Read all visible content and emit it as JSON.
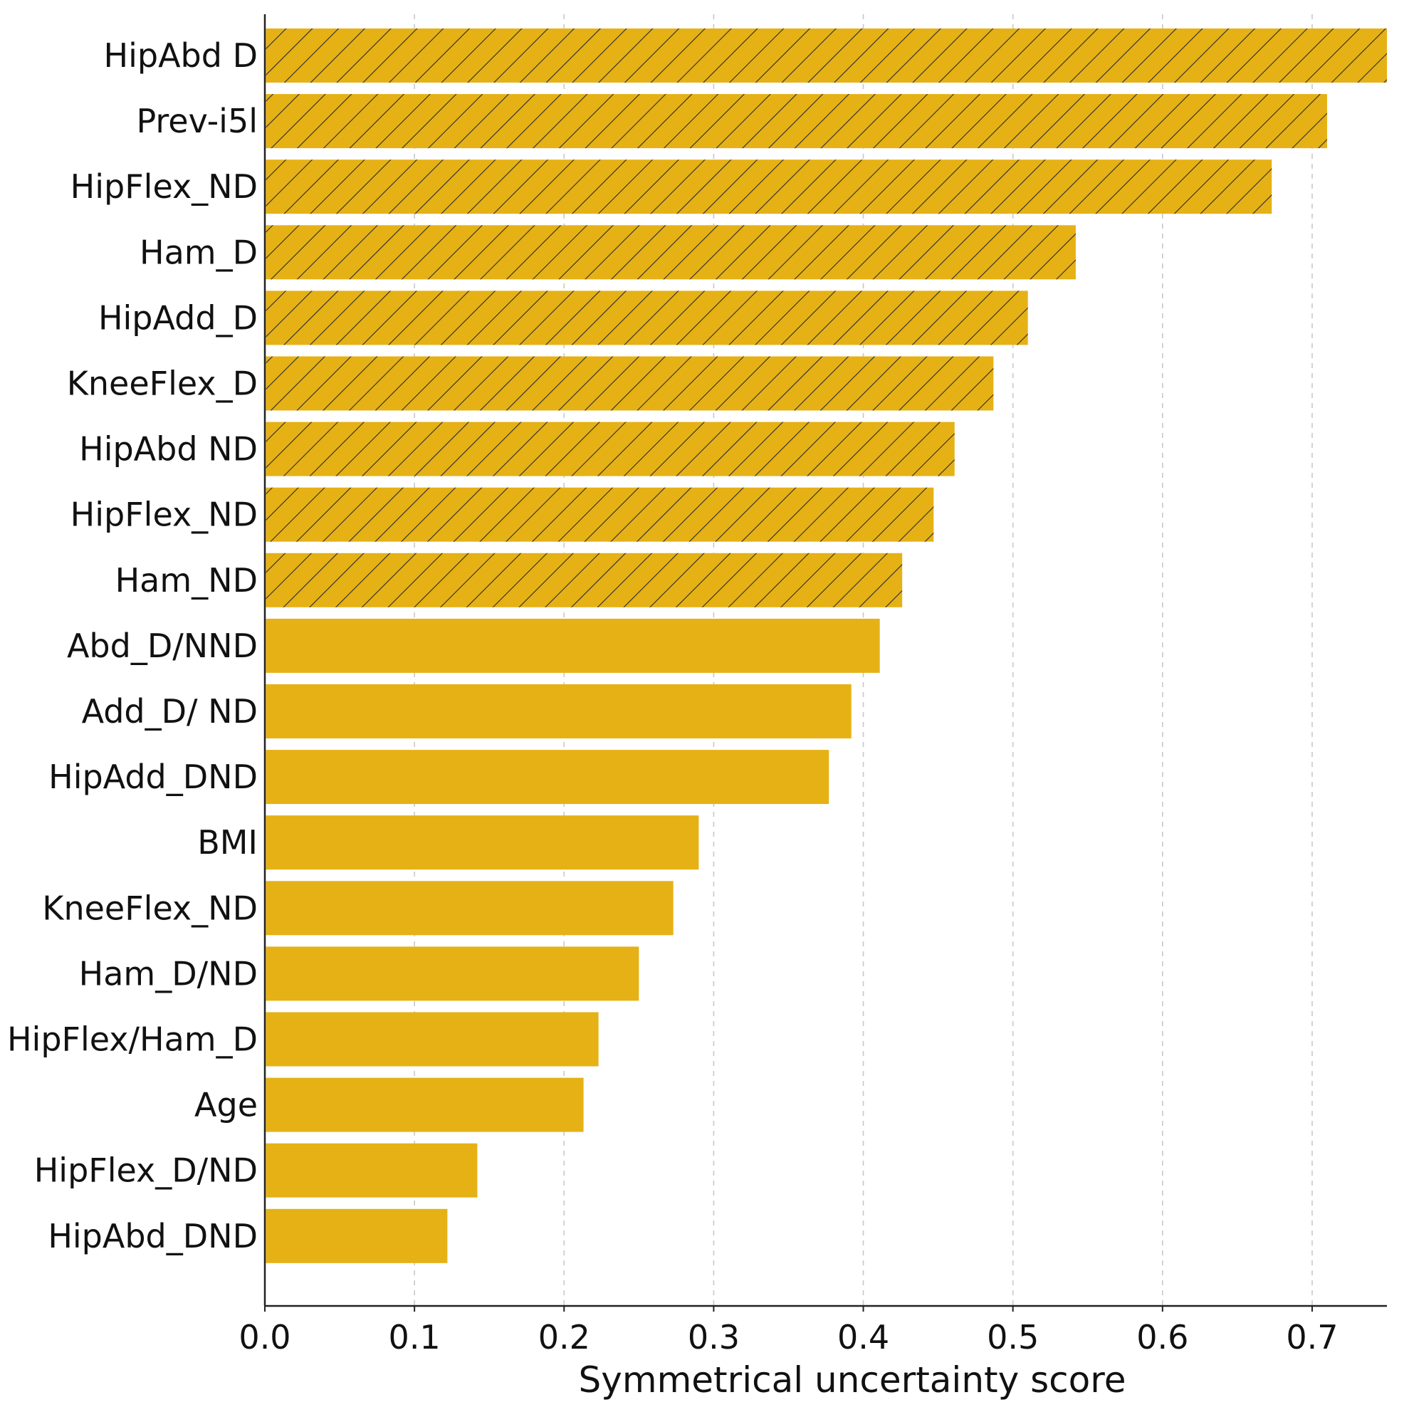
{
  "chart_data": {
    "type": "bar",
    "orientation": "horizontal",
    "title": "",
    "xlabel": "Symmetrical uncertainty score",
    "ylabel": "",
    "xlim": [
      0,
      0.75
    ],
    "xticks": [
      "0.0",
      "0.1",
      "0.2",
      "0.3",
      "0.4",
      "0.5",
      "0.6",
      "0.7"
    ],
    "grid": "vertical dashed",
    "bar_color": "#E5B115",
    "hatch_color": "#2a2a2a",
    "categories": [
      "HipAbd D",
      "Prev-i5l",
      "HipFlex_ND",
      "Ham_D",
      "HipAdd_D",
      "KneeFlex_D",
      "HipAbd ND",
      "HipFlex_ND",
      "Ham_ND",
      "Abd_D/NND",
      "Add_D/ ND",
      "HipAdd_DND",
      "BMI",
      "KneeFlex_ND",
      "Ham_D/ND",
      "HipFlex/Ham_D",
      "Age",
      "HipFlex_D/ND",
      "HipAbd_DND"
    ],
    "values": [
      0.75,
      0.71,
      0.673,
      0.542,
      0.51,
      0.487,
      0.461,
      0.447,
      0.426,
      0.411,
      0.392,
      0.377,
      0.29,
      0.273,
      0.25,
      0.223,
      0.213,
      0.142,
      0.122
    ],
    "hatched": [
      true,
      true,
      true,
      true,
      true,
      true,
      true,
      true,
      true,
      false,
      false,
      false,
      false,
      false,
      false,
      false,
      false,
      false,
      false
    ]
  }
}
